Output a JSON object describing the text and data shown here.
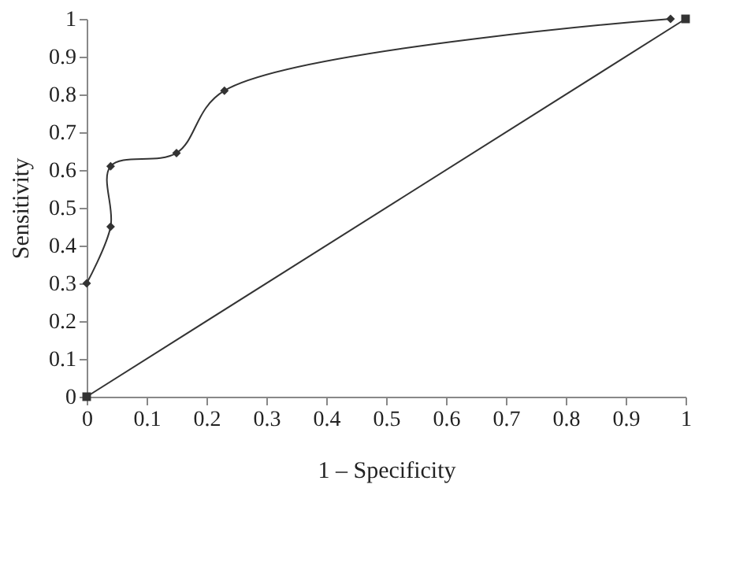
{
  "chart_data": {
    "type": "line",
    "xlabel": "1 – Specificity",
    "ylabel": "Sensitivity",
    "xlim": [
      0,
      1
    ],
    "ylim": [
      0,
      1
    ],
    "xticks": [
      0,
      0.1,
      0.2,
      0.3,
      0.4,
      0.5,
      0.6,
      0.7,
      0.8,
      0.9,
      1
    ],
    "yticks": [
      0,
      0.1,
      0.2,
      0.3,
      0.4,
      0.5,
      0.6,
      0.7,
      0.8,
      0.9,
      1
    ],
    "series": [
      {
        "color": "#333333",
        "marker": "diamond",
        "x": [
          0,
          0.04,
          0.04,
          0.15,
          0.23,
          0.975
        ],
        "values": [
          0.3,
          0.45,
          0.61,
          0.645,
          0.81,
          1.0
        ]
      },
      {
        "color": "#333333",
        "marker": "square",
        "x": [
          0,
          1
        ],
        "values": [
          0,
          1
        ]
      }
    ]
  }
}
